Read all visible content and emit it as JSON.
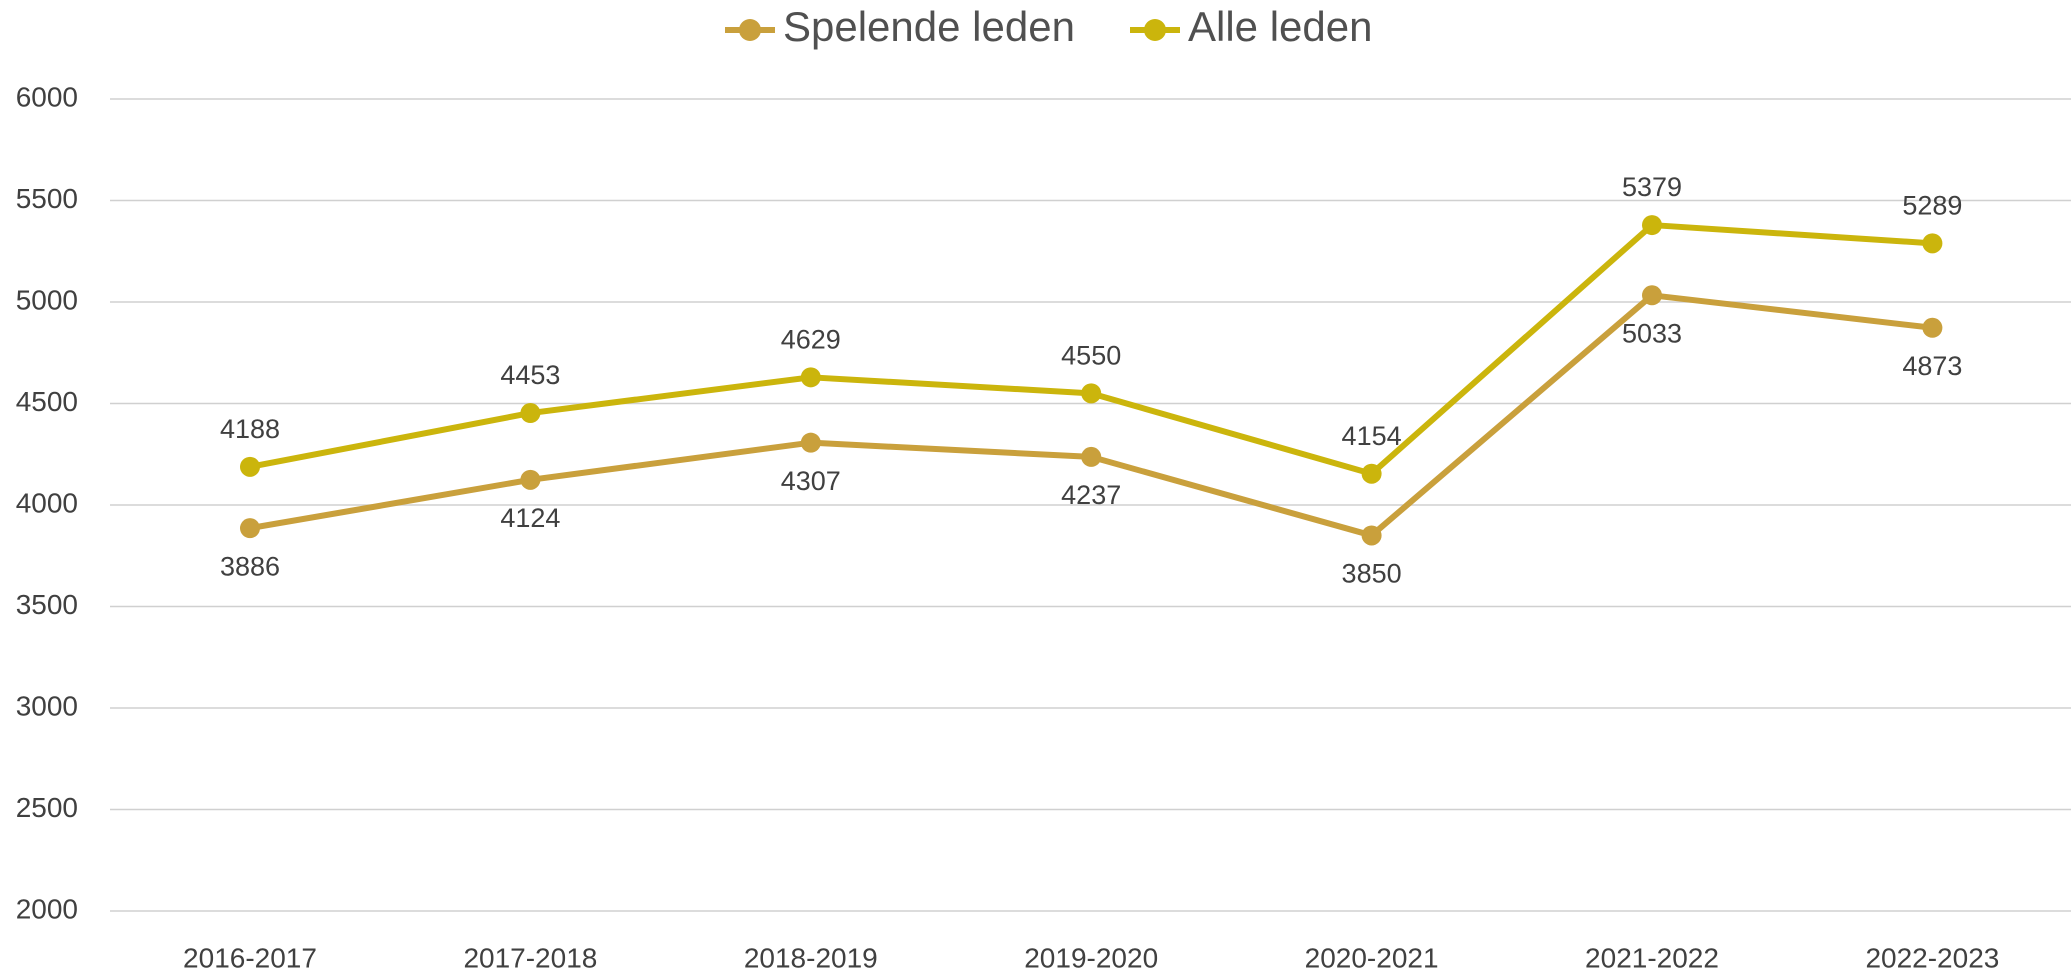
{
  "chart_data": {
    "type": "line",
    "categories": [
      "2016-2017",
      "2017-2018",
      "2018-2019",
      "2019-2020",
      "2020-2021",
      "2021-2022",
      "2022-2023"
    ],
    "series": [
      {
        "name": "Spelende leden",
        "color": "#c9a03c",
        "values": [
          3886,
          4124,
          4307,
          4237,
          3850,
          5033,
          4873
        ],
        "label_position": "below"
      },
      {
        "name": "Alle leden",
        "color": "#cbb50c",
        "values": [
          4188,
          4453,
          4629,
          4550,
          4154,
          5379,
          5289
        ],
        "label_position": "above"
      }
    ],
    "ylim": [
      2000,
      6000
    ],
    "yticks": [
      2000,
      2500,
      3000,
      3500,
      4000,
      4500,
      5000,
      5500,
      6000
    ],
    "grid": true,
    "legend": "top"
  }
}
